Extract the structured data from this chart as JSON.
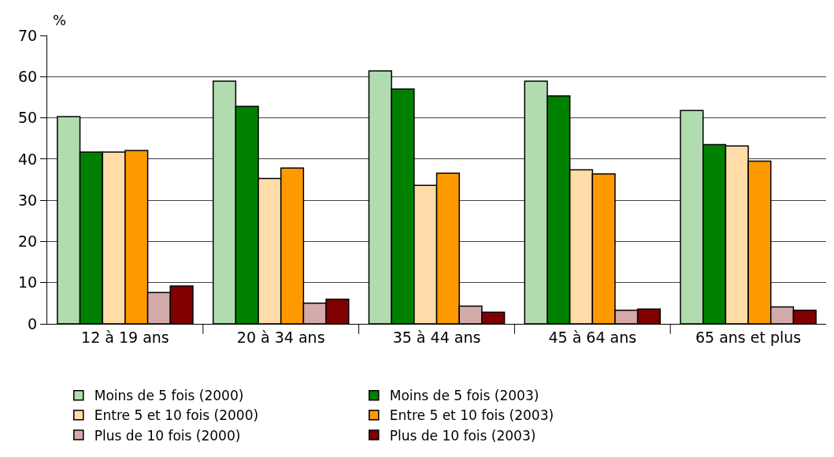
{
  "chart_data": {
    "type": "bar",
    "ylabel": "%",
    "categories": [
      "12 à 19 ans",
      "20 à 34 ans",
      "35 à 44 ans",
      "45 à 64 ans",
      "65 ans et plus"
    ],
    "series": [
      {
        "name": "Moins de 5 fois (2000)",
        "color": "#b0dcb0",
        "values": [
          50.3,
          58.9,
          61.4,
          58.9,
          51.8
        ]
      },
      {
        "name": "Moins de 5 fois (2003)",
        "color": "#008000",
        "values": [
          41.7,
          52.8,
          57.0,
          55.3,
          43.5
        ]
      },
      {
        "name": "Entre 5 et 10 fois (2000)",
        "color": "#ffdca8",
        "values": [
          41.7,
          35.3,
          33.6,
          37.4,
          43.2
        ]
      },
      {
        "name": "Entre 5 et 10 fois (2003)",
        "color": "#ff9900",
        "values": [
          42.1,
          37.8,
          36.6,
          36.4,
          39.5
        ]
      },
      {
        "name": "Plus de 10 fois (2000)",
        "color": "#d4aaaa",
        "values": [
          7.6,
          5.0,
          4.3,
          3.3,
          4.1
        ]
      },
      {
        "name": "Plus de 10 fois (2003)",
        "color": "#800000",
        "values": [
          9.2,
          6.0,
          2.8,
          3.6,
          3.3
        ]
      }
    ],
    "ylim": [
      0,
      70
    ],
    "yticks": [
      0,
      10,
      20,
      30,
      40,
      50,
      60,
      70
    ],
    "grid": "y",
    "legend": "bottom"
  }
}
